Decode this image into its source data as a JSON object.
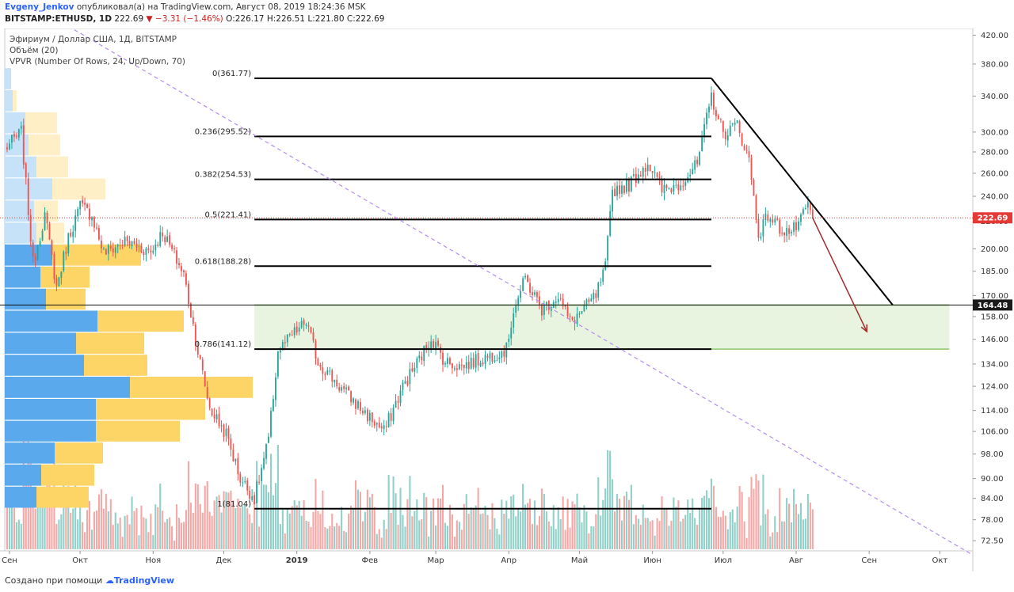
{
  "header": {
    "author": "Evgeny_Jenkov",
    "published_text": "опубликовал(а) на TradingView.com, Август 08, 2019 18:24:36 MSK",
    "symbol_line": "BITSTAMP:ETHUSD, 1D",
    "last": "222.69",
    "change": "−3.31 (−1.46%)",
    "o_label": "O:",
    "o_value": "226.17",
    "h_label": "H:",
    "h_value": "226.51",
    "l_label": "L:",
    "l_value": "221.80",
    "c_label": "C:",
    "c_value": "222.69"
  },
  "legend": {
    "title": "Эфириум / Доллар США, 1Д, BITSTAMP",
    "volume": "Объём (20)",
    "vpvr": "VPVR (Number Of Rows, 24, Up/Down, 70)"
  },
  "footer": {
    "created_with": "Создано при помощи",
    "brand": "TradingView"
  },
  "colors": {
    "up": "#26a69a",
    "down": "#ef5350",
    "up_volume": "#8fd0c8",
    "down_volume": "#f4a7a5",
    "vpvr_up": "#5aa9ec",
    "vpvr_down": "#fdd466",
    "vpvr_up_light": "#c5e2f8",
    "vpvr_down_light": "#feefc6",
    "zone": "#e8f4e0",
    "zone_border": "#8cc56a",
    "fib": "#000000",
    "trendline": "#b48cf0",
    "arrow": "#a52a2a",
    "price_line": "#e53935"
  },
  "chart_data": {
    "type": "candlestick",
    "symbol": "BITSTAMP:ETHUSD",
    "interval": "1D",
    "y_scale": "log",
    "ylim": [
      70,
      430
    ],
    "y_ticks": [
      "72.50",
      "78.00",
      "84.00",
      "90.00",
      "98.00",
      "106.00",
      "114.00",
      "124.00",
      "134.00",
      "146.00",
      "158.00",
      "170.00",
      "185.00",
      "200.00",
      "220.00",
      "240.00",
      "260.00",
      "280.00",
      "300.00",
      "340.00",
      "380.00",
      "420.00"
    ],
    "x_ticks": [
      "Сен",
      "Окт",
      "Ноя",
      "Дек",
      "2019",
      "Фев",
      "Мар",
      "Апр",
      "Май",
      "Июн",
      "Июл",
      "Авг",
      "Сен",
      "Окт"
    ],
    "x_range": [
      "2018-08-30",
      "2019-10-15"
    ],
    "last_price": {
      "value": 222.69,
      "label": "222.69"
    },
    "horizontal_line": {
      "value": 164.48,
      "label": "164.48"
    },
    "fib_levels": [
      {
        "label": "0(361.77)",
        "value": 361.77
      },
      {
        "label": "0.236(295.52)",
        "value": 295.52
      },
      {
        "label": "0.382(254.53)",
        "value": 254.53
      },
      {
        "label": "0.5(221.41)",
        "value": 221.41
      },
      {
        "label": "0.618(188.28)",
        "value": 188.28
      },
      {
        "label": "0.786(141.12)",
        "value": 141.12
      },
      {
        "label": "1(81.04)",
        "value": 81.04
      }
    ],
    "fib_start_date": "2018-12-14",
    "fib_end_date": "2019-06-26",
    "support_zone": {
      "from": 141.12,
      "to": 164.48,
      "start_date": "2018-12-14",
      "end_date": "2019-10-05"
    },
    "resistance_trendline": {
      "start": [
        "2019-06-26",
        361.77
      ],
      "end": [
        "2019-09-11",
        164.48
      ]
    },
    "long_trendline": {
      "start": [
        "2018-07-20",
        600
      ],
      "end": [
        "2019-10-15",
        69
      ]
    },
    "projection_arrow": {
      "start": [
        "2019-08-08",
        222.69
      ],
      "end": [
        "2019-08-31",
        150
      ]
    },
    "price_path": [
      [
        "2018-08-30",
        283
      ],
      [
        "2018-09-06",
        300
      ],
      [
        "2018-09-11",
        190
      ],
      [
        "2018-09-16",
        225
      ],
      [
        "2018-09-21",
        175
      ],
      [
        "2018-09-26",
        208
      ],
      [
        "2018-10-01",
        232
      ],
      [
        "2018-10-06",
        225
      ],
      [
        "2018-10-11",
        197
      ],
      [
        "2018-10-20",
        205
      ],
      [
        "2018-10-31",
        198
      ],
      [
        "2018-11-05",
        212
      ],
      [
        "2018-11-14",
        183
      ],
      [
        "2018-11-20",
        140
      ],
      [
        "2018-11-25",
        115
      ],
      [
        "2018-12-02",
        105
      ],
      [
        "2018-12-08",
        90
      ],
      [
        "2018-12-14",
        84
      ],
      [
        "2018-12-20",
        103
      ],
      [
        "2018-12-24",
        140
      ],
      [
        "2018-12-30",
        148
      ],
      [
        "2019-01-05",
        155
      ],
      [
        "2019-01-10",
        135
      ],
      [
        "2019-01-20",
        123
      ],
      [
        "2019-01-31",
        112
      ],
      [
        "2019-02-07",
        106
      ],
      [
        "2019-02-15",
        124
      ],
      [
        "2019-02-24",
        140
      ],
      [
        "2019-02-27",
        147
      ],
      [
        "2019-03-05",
        135
      ],
      [
        "2019-03-12",
        133
      ],
      [
        "2019-03-22",
        137
      ],
      [
        "2019-03-31",
        141
      ],
      [
        "2019-04-03",
        162
      ],
      [
        "2019-04-08",
        180
      ],
      [
        "2019-04-15",
        162
      ],
      [
        "2019-04-22",
        170
      ],
      [
        "2019-04-27",
        155
      ],
      [
        "2019-05-03",
        162
      ],
      [
        "2019-05-08",
        170
      ],
      [
        "2019-05-12",
        187
      ],
      [
        "2019-05-15",
        245
      ],
      [
        "2019-05-22",
        250
      ],
      [
        "2019-05-30",
        270
      ],
      [
        "2019-06-05",
        245
      ],
      [
        "2019-06-12",
        250
      ],
      [
        "2019-06-20",
        268
      ],
      [
        "2019-06-26",
        340
      ],
      [
        "2019-07-01",
        298
      ],
      [
        "2019-07-07",
        308
      ],
      [
        "2019-07-12",
        272
      ],
      [
        "2019-07-16",
        210
      ],
      [
        "2019-07-20",
        225
      ],
      [
        "2019-07-25",
        215
      ],
      [
        "2019-07-30",
        212
      ],
      [
        "2019-08-03",
        220
      ],
      [
        "2019-08-06",
        233
      ],
      [
        "2019-08-08",
        222.69
      ]
    ],
    "volume_profile": [
      {
        "price_from": 81.04,
        "price_to": 87.5,
        "up": 40,
        "down": 66
      },
      {
        "price_from": 87.5,
        "price_to": 94.5,
        "up": 46,
        "down": 67
      },
      {
        "price_from": 94.5,
        "price_to": 102,
        "up": 63,
        "down": 61
      },
      {
        "price_from": 102,
        "price_to": 110,
        "up": 115,
        "down": 106
      },
      {
        "price_from": 110,
        "price_to": 118.7,
        "up": 115,
        "down": 138
      },
      {
        "price_from": 118.7,
        "price_to": 128.2,
        "up": 158,
        "down": 155
      },
      {
        "price_from": 128.2,
        "price_to": 138.4,
        "up": 100,
        "down": 80
      },
      {
        "price_from": 138.4,
        "price_to": 149.4,
        "up": 90,
        "down": 86
      },
      {
        "price_from": 149.4,
        "price_to": 161.3,
        "up": 117,
        "down": 109
      },
      {
        "price_from": 161.3,
        "price_to": 174.1,
        "up": 52,
        "down": 50
      },
      {
        "price_from": 174.1,
        "price_to": 188,
        "up": 45,
        "down": 62
      },
      {
        "price_from": 188,
        "price_to": 203,
        "up": 60,
        "down": 112
      },
      {
        "price_from": 203,
        "price_to": 219,
        "up": 40,
        "down": 35
      },
      {
        "price_from": 219,
        "price_to": 236.5,
        "up": 37,
        "down": 30
      },
      {
        "price_from": 236.5,
        "price_to": 255.4,
        "up": 60,
        "down": 67
      },
      {
        "price_from": 255.4,
        "price_to": 275.7,
        "up": 40,
        "down": 40
      },
      {
        "price_from": 275.7,
        "price_to": 297.7,
        "up": 30,
        "down": 40
      },
      {
        "price_from": 297.7,
        "price_to": 321.4,
        "up": 26,
        "down": 40
      },
      {
        "price_from": 321.4,
        "price_to": 347,
        "up": 10,
        "down": 5
      },
      {
        "price_from": 347,
        "price_to": 374.6,
        "up": 8,
        "down": 0
      }
    ]
  }
}
